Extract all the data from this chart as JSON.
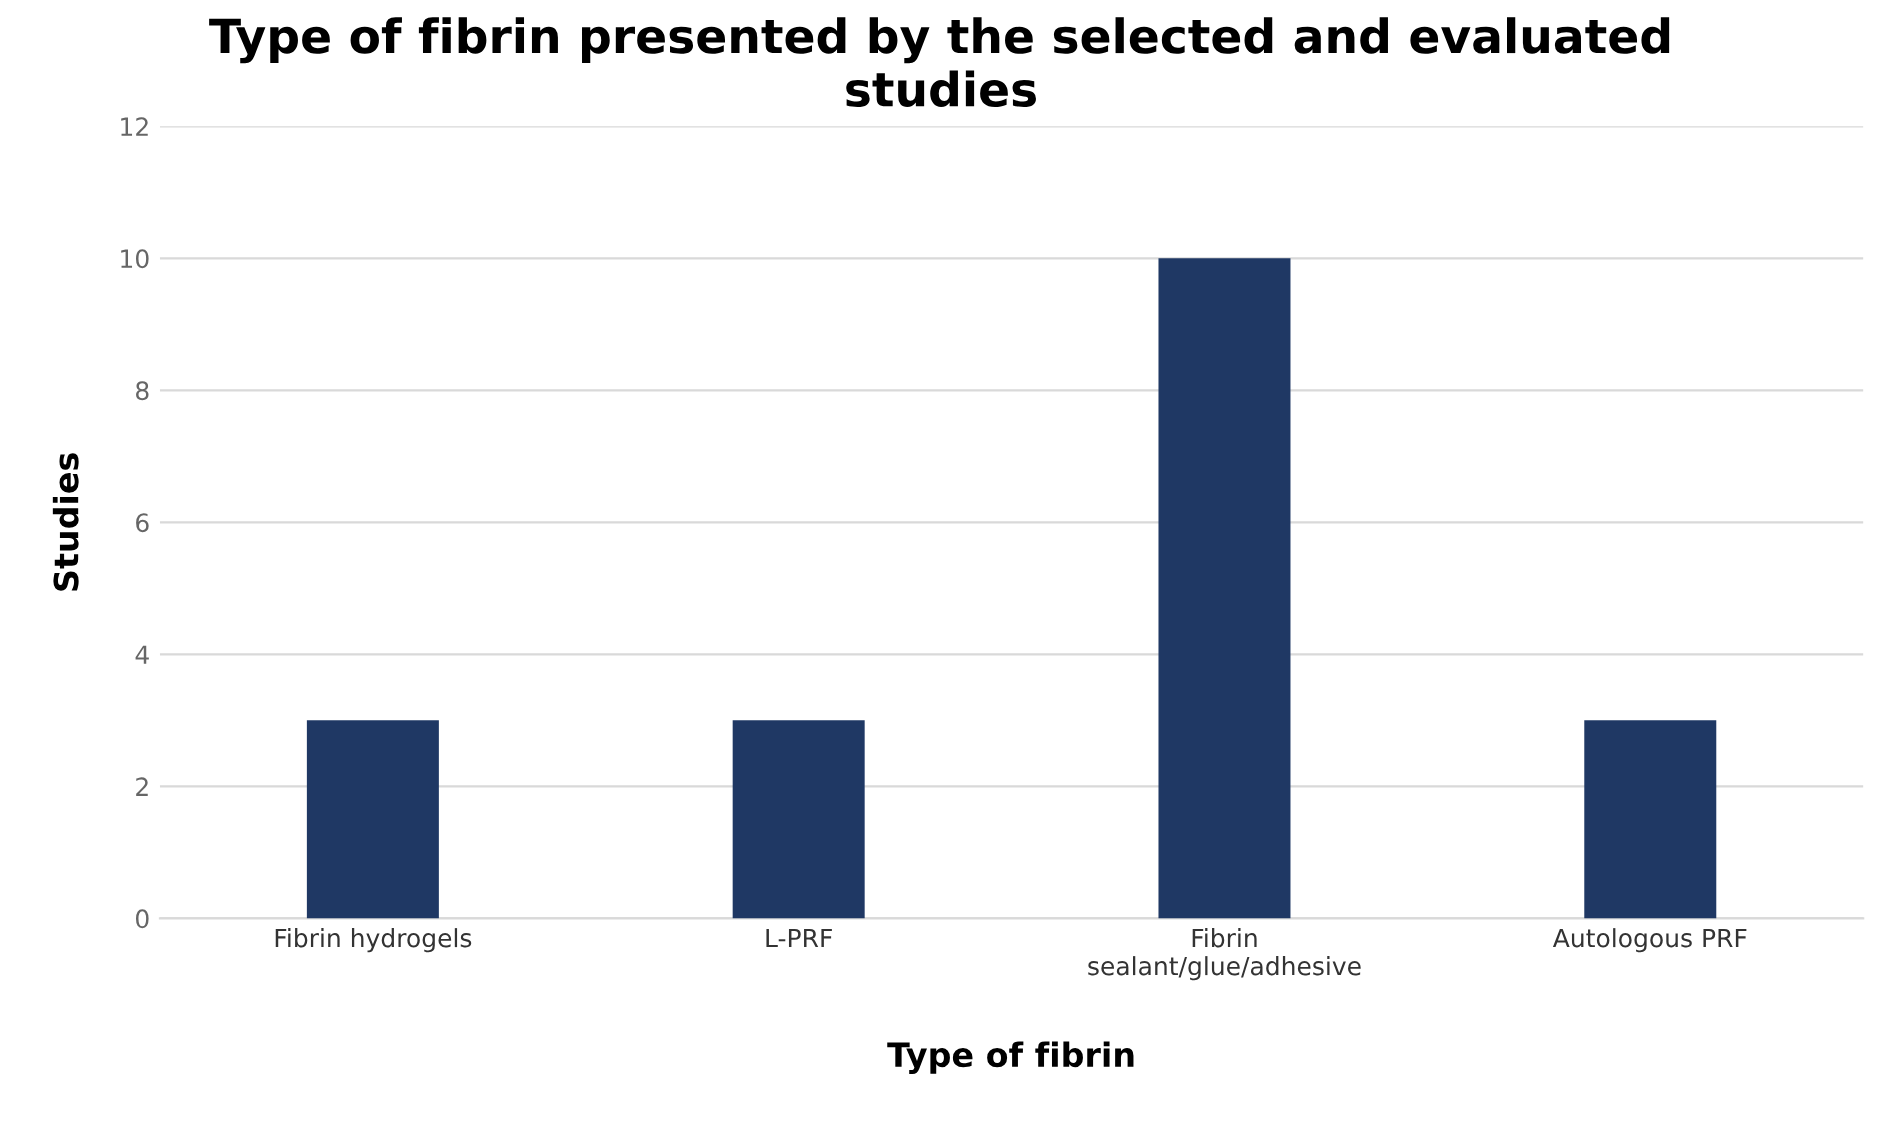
{
  "chart_data": {
    "type": "bar",
    "title": "Type of fibrin presented by the selected and evaluated\nstudies",
    "xlabel": "Type of fibrin",
    "ylabel": "Studies",
    "categories": [
      "Fibrin hydrogels",
      "L-PRF",
      "Fibrin\nsealant/glue/adhesive",
      "Autologous PRF"
    ],
    "values": [
      3,
      3,
      10,
      3
    ],
    "color": "#1f3864",
    "ylim": [
      0,
      12
    ],
    "yticks": [
      0,
      2,
      4,
      6,
      8,
      10,
      12
    ],
    "grid": "y",
    "legend": false
  }
}
